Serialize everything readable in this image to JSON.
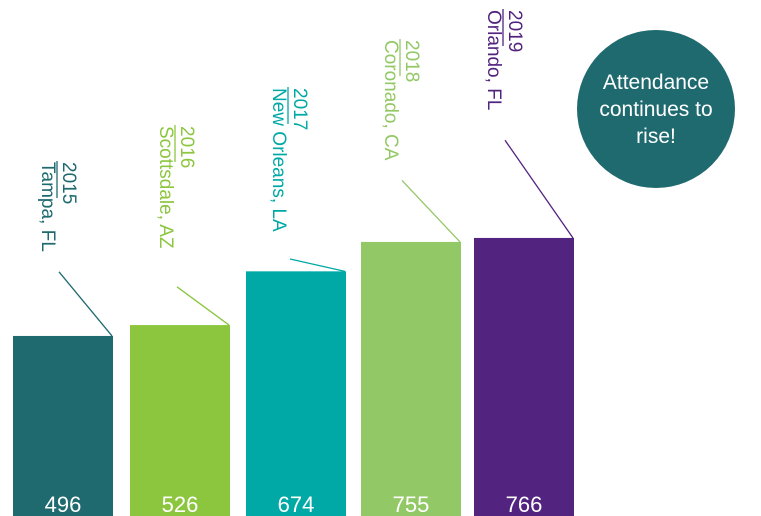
{
  "chart_data": {
    "type": "bar",
    "categories": [
      "2015",
      "2016",
      "2017",
      "2018",
      "2019"
    ],
    "locations": [
      "Tampa, FL",
      "Scottsdale, AZ",
      "New Orleans, LA",
      "Coronado, CA",
      "Orlando, FL"
    ],
    "values": [
      496,
      526,
      674,
      755,
      766
    ],
    "value_labels": [
      "496",
      "526",
      "674",
      "755",
      "766"
    ],
    "colors": [
      "#1f6a6f",
      "#8cc63f",
      "#00a9a5",
      "#93c866",
      "#52237f"
    ],
    "label_colors": [
      "#1f6a6f",
      "#8cc63f",
      "#00a9a5",
      "#93c866",
      "#52237f"
    ],
    "title": "",
    "xlabel": "",
    "ylabel": "",
    "legend": "none",
    "grid": false
  },
  "callout": {
    "text": "Attendance continues to rise!",
    "color": "#1f6a6f"
  }
}
